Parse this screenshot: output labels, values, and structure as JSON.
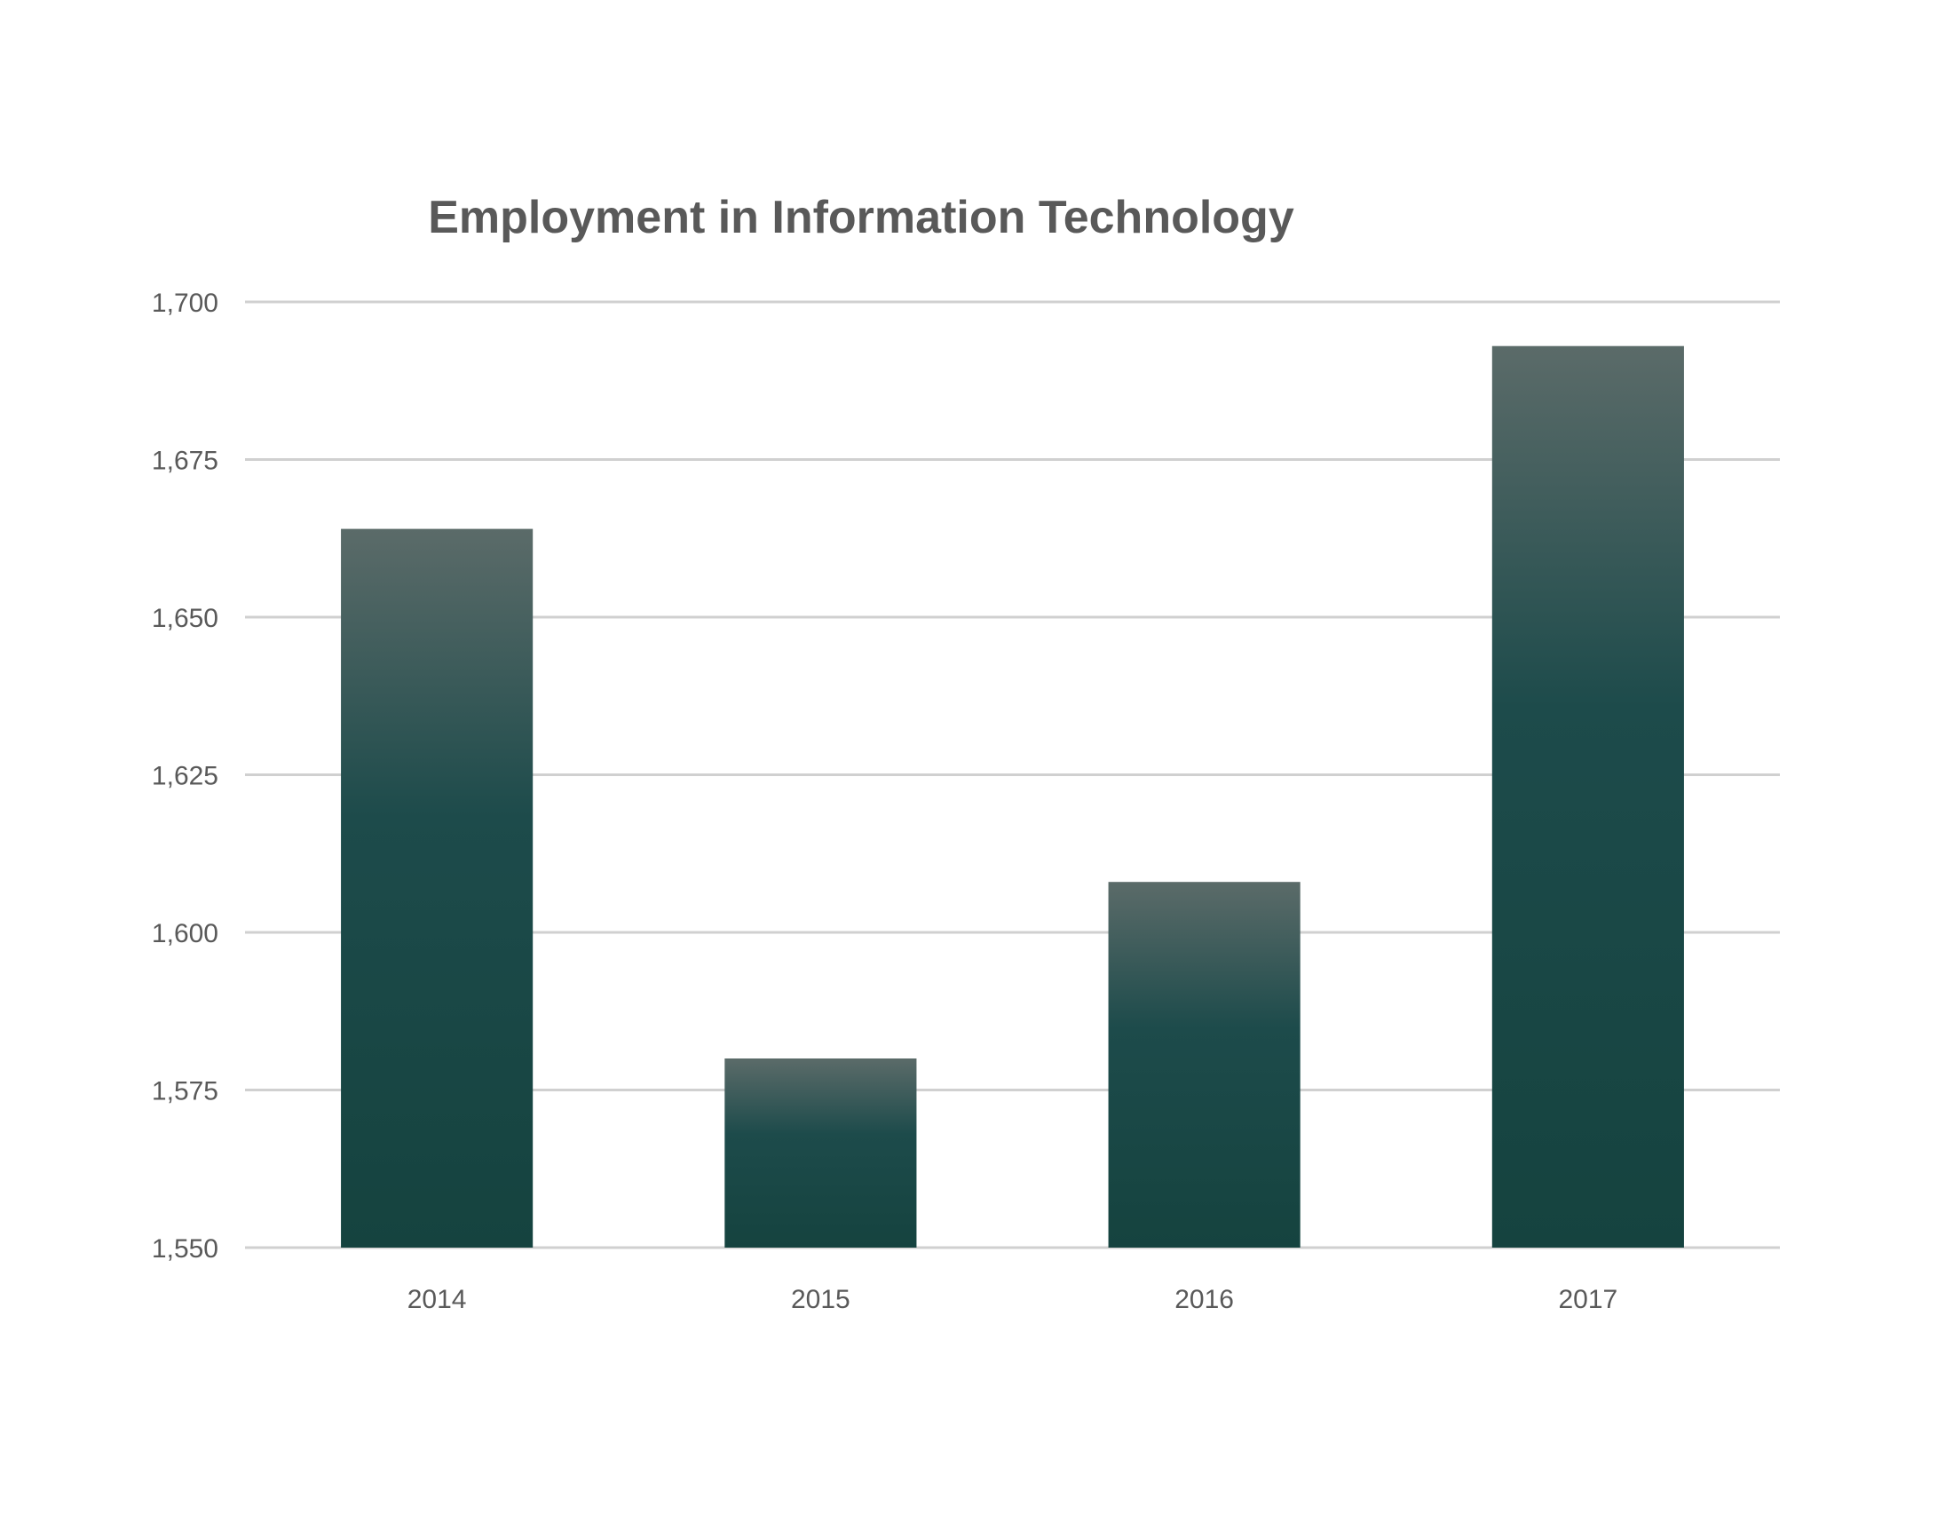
{
  "chart_data": {
    "type": "bar",
    "title": "Employment in Information Technology",
    "xlabel": "",
    "ylabel": "",
    "categories": [
      "2014",
      "2015",
      "2016",
      "2017"
    ],
    "values": [
      1664,
      1580,
      1608,
      1693
    ],
    "ylim": [
      1550,
      1700
    ],
    "yticks": [
      1550,
      1575,
      1600,
      1625,
      1650,
      1675,
      1700
    ],
    "ytick_labels": [
      "1,550",
      "1,575",
      "1,600",
      "1,625",
      "1,650",
      "1,675",
      "1,700"
    ],
    "grid": true,
    "legend": "none",
    "colors": {
      "bar_top": "#5b6b69",
      "bar_bottom": "#15433f",
      "grid": "#d0d0d0",
      "title": "#595959",
      "tick_label": "#595959"
    }
  }
}
